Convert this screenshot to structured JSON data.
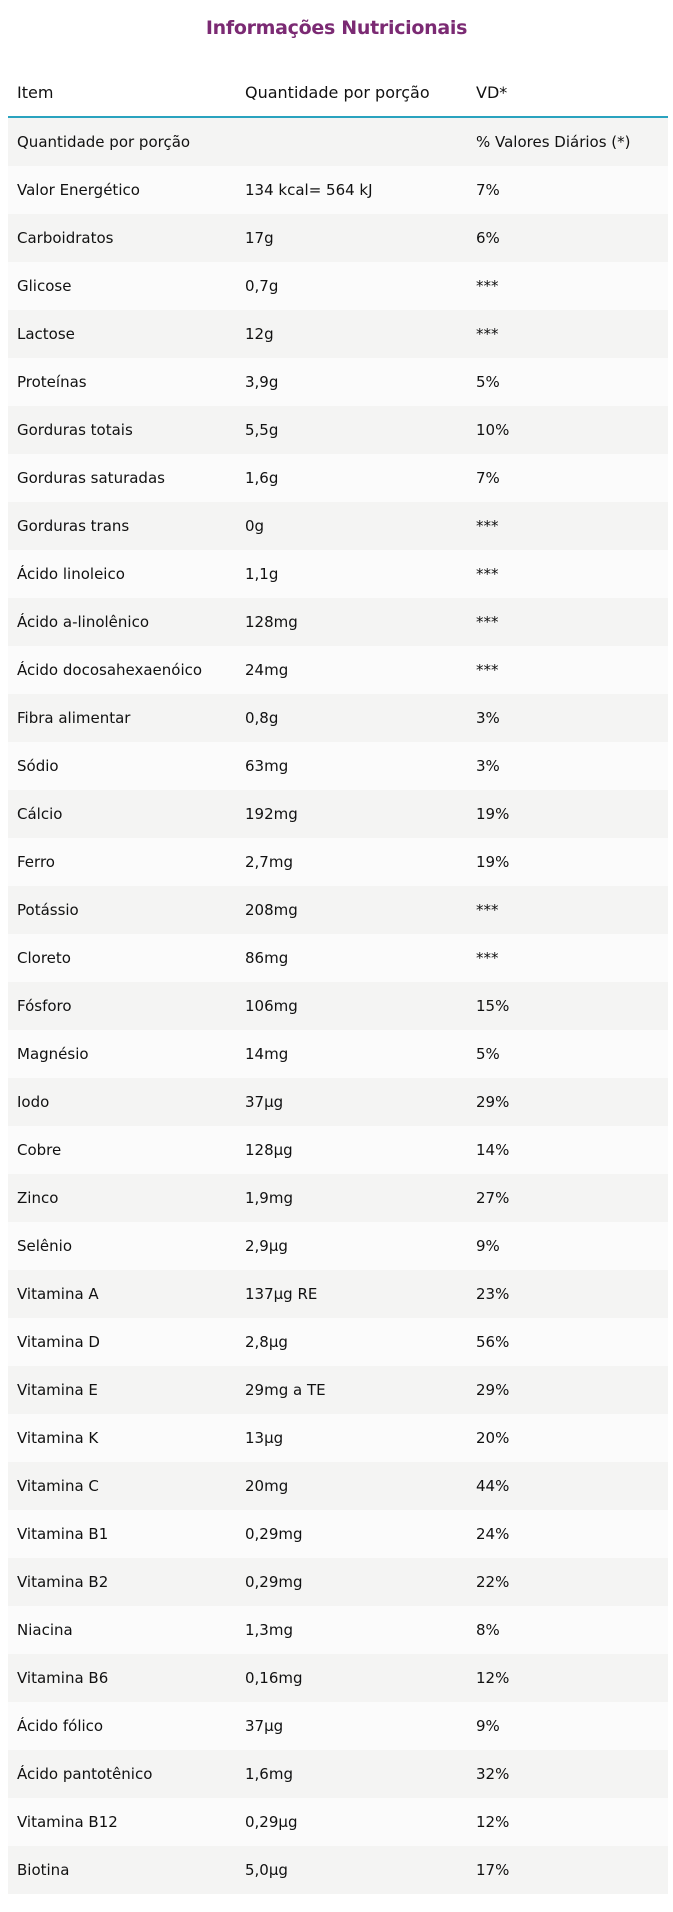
{
  "title": "Informações Nutricionais",
  "colors": {
    "title": "#7b2a73",
    "header_rule": "#2aa3bf",
    "row_odd": "#f4f4f3",
    "row_even": "#fbfbfb"
  },
  "table": {
    "headers": [
      "Item",
      "Quantidade por porção",
      "VD*"
    ],
    "rows": [
      [
        "Quantidade por porção",
        "",
        "% Valores Diários (*)"
      ],
      [
        "Valor Energético",
        "134 kcal= 564 kJ",
        "7%"
      ],
      [
        "Carboidratos",
        "17g",
        "6%"
      ],
      [
        "Glicose",
        "0,7g",
        "***"
      ],
      [
        "Lactose",
        "12g",
        "***"
      ],
      [
        "Proteínas",
        "3,9g",
        "5%"
      ],
      [
        "Gorduras totais",
        "5,5g",
        "10%"
      ],
      [
        "Gorduras saturadas",
        "1,6g",
        "7%"
      ],
      [
        "Gorduras trans",
        "0g",
        "***"
      ],
      [
        "Ácido linoleico",
        "1,1g",
        "***"
      ],
      [
        "Ácido a-linolênico",
        "128mg",
        "***"
      ],
      [
        "Ácido docosahexaenóico",
        "24mg",
        "***"
      ],
      [
        "Fibra alimentar",
        "0,8g",
        "3%"
      ],
      [
        "Sódio",
        "63mg",
        "3%"
      ],
      [
        "Cálcio",
        "192mg",
        "19%"
      ],
      [
        "Ferro",
        "2,7mg",
        "19%"
      ],
      [
        "Potássio",
        "208mg",
        "***"
      ],
      [
        "Cloreto",
        "86mg",
        "***"
      ],
      [
        "Fósforo",
        "106mg",
        "15%"
      ],
      [
        "Magnésio",
        "14mg",
        "5%"
      ],
      [
        "Iodo",
        "37µg",
        "29%"
      ],
      [
        "Cobre",
        "128µg",
        "14%"
      ],
      [
        "Zinco",
        "1,9mg",
        "27%"
      ],
      [
        "Selênio",
        "2,9µg",
        "9%"
      ],
      [
        "Vitamina A",
        "137µg RE",
        "23%"
      ],
      [
        "Vitamina D",
        "2,8µg",
        "56%"
      ],
      [
        "Vitamina E",
        "29mg a TE",
        "29%"
      ],
      [
        "Vitamina K",
        "13µg",
        "20%"
      ],
      [
        "Vitamina C",
        "20mg",
        "44%"
      ],
      [
        "Vitamina B1",
        "0,29mg",
        "24%"
      ],
      [
        "Vitamina B2",
        "0,29mg",
        "22%"
      ],
      [
        "Niacina",
        "1,3mg",
        "8%"
      ],
      [
        "Vitamina B6",
        "0,16mg",
        "12%"
      ],
      [
        "Ácido fólico",
        "37µg",
        "9%"
      ],
      [
        "Ácido pantotênico",
        "1,6mg",
        "32%"
      ],
      [
        "Vitamina B12",
        "0,29µg",
        "12%"
      ],
      [
        "Biotina",
        "5,0µg",
        "17%"
      ]
    ]
  }
}
